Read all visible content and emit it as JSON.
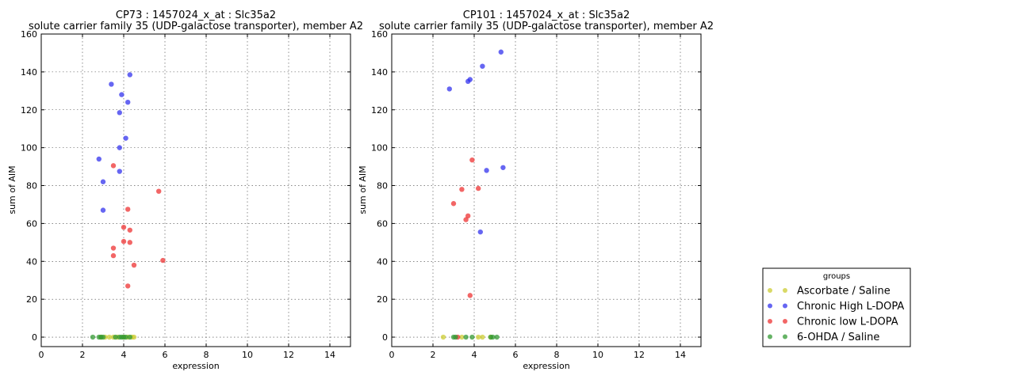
{
  "chart_data": [
    {
      "type": "scatter",
      "title": "CP73 : 1457024_x_at : Slc35a2",
      "subtitle": "solute carrier family 35 (UDP-galactose transporter), member A2",
      "xlabel": "expression",
      "ylabel": "sum of AIM",
      "xlim": [
        0,
        15
      ],
      "ylim": [
        -5,
        160
      ],
      "xticks": [
        0,
        2,
        4,
        6,
        8,
        10,
        12,
        14
      ],
      "yticks": [
        0,
        20,
        40,
        60,
        80,
        100,
        120,
        140,
        160
      ],
      "grid": true,
      "series": [
        {
          "name": "Ascorbate / Saline",
          "color": "#cccc33",
          "points": [
            [
              2.9,
              0
            ],
            [
              3.1,
              0
            ],
            [
              3.3,
              0
            ],
            [
              3.5,
              0
            ],
            [
              3.7,
              0
            ],
            [
              4.0,
              0
            ],
            [
              4.2,
              0
            ],
            [
              4.4,
              0
            ],
            [
              4.5,
              0
            ]
          ]
        },
        {
          "name": "Chronic High L-DOPA",
          "color": "#3333ee",
          "points": [
            [
              4.3,
              138.5
            ],
            [
              3.4,
              133.5
            ],
            [
              3.9,
              128
            ],
            [
              4.2,
              124
            ],
            [
              3.8,
              118.5
            ],
            [
              4.1,
              105
            ],
            [
              3.8,
              100
            ],
            [
              2.8,
              94
            ],
            [
              3.8,
              87.5
            ],
            [
              3.0,
              82
            ],
            [
              3.0,
              67
            ]
          ]
        },
        {
          "name": "Chronic low L-DOPA",
          "color": "#ee3333",
          "points": [
            [
              3.5,
              90.5
            ],
            [
              5.7,
              77
            ],
            [
              4.2,
              67.5
            ],
            [
              4.0,
              58
            ],
            [
              4.3,
              56.5
            ],
            [
              4.0,
              50.5
            ],
            [
              4.3,
              50
            ],
            [
              3.5,
              47
            ],
            [
              3.5,
              43
            ],
            [
              5.9,
              40.5
            ],
            [
              4.5,
              38
            ],
            [
              4.2,
              27
            ]
          ]
        },
        {
          "name": "6-OHDA / Saline",
          "color": "#339933",
          "points": [
            [
              2.5,
              0
            ],
            [
              2.8,
              0
            ],
            [
              2.9,
              0
            ],
            [
              3.0,
              0
            ],
            [
              3.6,
              0
            ],
            [
              3.8,
              0
            ],
            [
              3.9,
              0
            ],
            [
              4.0,
              0
            ],
            [
              4.1,
              0
            ],
            [
              4.3,
              0
            ]
          ]
        }
      ]
    },
    {
      "type": "scatter",
      "title": "CP101 : 1457024_x_at : Slc35a2",
      "subtitle": "solute carrier family 35 (UDP-galactose transporter), member A2",
      "xlabel": "expression",
      "ylabel": "sum of AIM",
      "xlim": [
        0,
        15
      ],
      "ylim": [
        -5,
        160
      ],
      "xticks": [
        0,
        2,
        4,
        6,
        8,
        10,
        12,
        14
      ],
      "yticks": [
        0,
        20,
        40,
        60,
        80,
        100,
        120,
        140,
        160
      ],
      "grid": true,
      "series": [
        {
          "name": "Ascorbate / Saline",
          "color": "#cccc33",
          "points": [
            [
              2.5,
              0
            ],
            [
              3.4,
              0
            ],
            [
              4.2,
              0
            ],
            [
              4.4,
              0
            ],
            [
              4.8,
              0
            ]
          ]
        },
        {
          "name": "Chronic High L-DOPA",
          "color": "#3333ee",
          "points": [
            [
              5.3,
              150.5
            ],
            [
              4.4,
              143
            ],
            [
              3.8,
              136
            ],
            [
              3.7,
              135
            ],
            [
              2.8,
              131
            ],
            [
              5.4,
              89.5
            ],
            [
              4.6,
              88
            ],
            [
              4.3,
              55.5
            ]
          ]
        },
        {
          "name": "Chronic low L-DOPA",
          "color": "#ee3333",
          "points": [
            [
              3.9,
              93.5
            ],
            [
              3.4,
              78
            ],
            [
              4.2,
              78.5
            ],
            [
              3.0,
              70.5
            ],
            [
              3.7,
              64
            ],
            [
              3.6,
              62
            ],
            [
              3.8,
              22
            ],
            [
              3.2,
              0
            ]
          ]
        },
        {
          "name": "6-OHDA / Saline",
          "color": "#339933",
          "points": [
            [
              3.0,
              0
            ],
            [
              3.1,
              0
            ],
            [
              3.6,
              0
            ],
            [
              3.9,
              0
            ],
            [
              4.8,
              0
            ],
            [
              4.9,
              0
            ],
            [
              5.1,
              0
            ]
          ]
        }
      ]
    }
  ],
  "legend": {
    "title": "groups",
    "placement": "lower-right",
    "entries": [
      {
        "label": "Ascorbate / Saline",
        "color": "#cccc33"
      },
      {
        "label": "Chronic High L-DOPA",
        "color": "#3333ee"
      },
      {
        "label": "Chronic low L-DOPA",
        "color": "#ee3333"
      },
      {
        "label": "6-OHDA / Saline",
        "color": "#339933"
      }
    ]
  }
}
